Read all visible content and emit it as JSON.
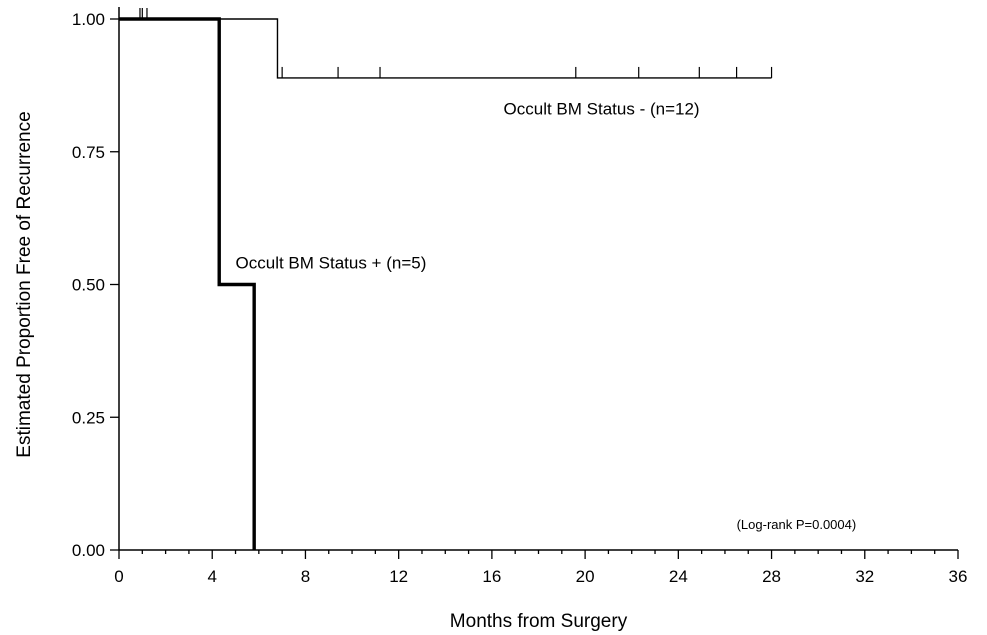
{
  "chart_data": {
    "type": "line",
    "subtype": "kaplan-meier-step",
    "title": "",
    "xlabel": "Months from Surgery",
    "ylabel": "Estimated Proportion Free of Recurrence",
    "xlim": [
      0,
      36
    ],
    "ylim": [
      0,
      1
    ],
    "x_ticks": [
      0,
      4,
      8,
      12,
      16,
      20,
      24,
      28,
      32,
      36
    ],
    "x_minor_step": 1,
    "y_ticks": [
      0.0,
      0.25,
      0.5,
      0.75,
      1.0
    ],
    "y_tick_labels": [
      "0.00",
      "0.25",
      "0.50",
      "0.75",
      "1.00"
    ],
    "grid": false,
    "series": [
      {
        "label": "Occult BM Status -   (n=12)",
        "style": "thin",
        "steps": [
          [
            0,
            1.0
          ],
          [
            6.8,
            1.0
          ],
          [
            6.8,
            0.889
          ],
          [
            28.0,
            0.889
          ]
        ],
        "censored": [
          {
            "x": 0.9,
            "y": 1.0
          },
          {
            "x": 1.0,
            "y": 1.0
          },
          {
            "x": 1.2,
            "y": 1.0
          },
          {
            "x": 7.0,
            "y": 0.889
          },
          {
            "x": 9.4,
            "y": 0.889
          },
          {
            "x": 11.2,
            "y": 0.889
          },
          {
            "x": 19.6,
            "y": 0.889
          },
          {
            "x": 22.3,
            "y": 0.889
          },
          {
            "x": 24.9,
            "y": 0.889
          },
          {
            "x": 26.5,
            "y": 0.889
          },
          {
            "x": 28.0,
            "y": 0.889
          }
        ]
      },
      {
        "label": "Occult BM Status +    (n=5)",
        "style": "thick",
        "steps": [
          [
            0,
            1.0
          ],
          [
            4.3,
            1.0
          ],
          [
            4.3,
            0.5
          ],
          [
            5.8,
            0.5
          ],
          [
            5.8,
            0.0
          ]
        ],
        "censored": []
      }
    ],
    "annotations": [
      {
        "text": "Occult BM Status -   (n=12)",
        "x": 16.5,
        "y": 0.82
      },
      {
        "text": "Occult BM Status +    (n=5)",
        "x": 5.0,
        "y": 0.53
      },
      {
        "text": "(Log-rank P=0.0004)",
        "x": 26.5,
        "y": 0.04
      }
    ]
  }
}
